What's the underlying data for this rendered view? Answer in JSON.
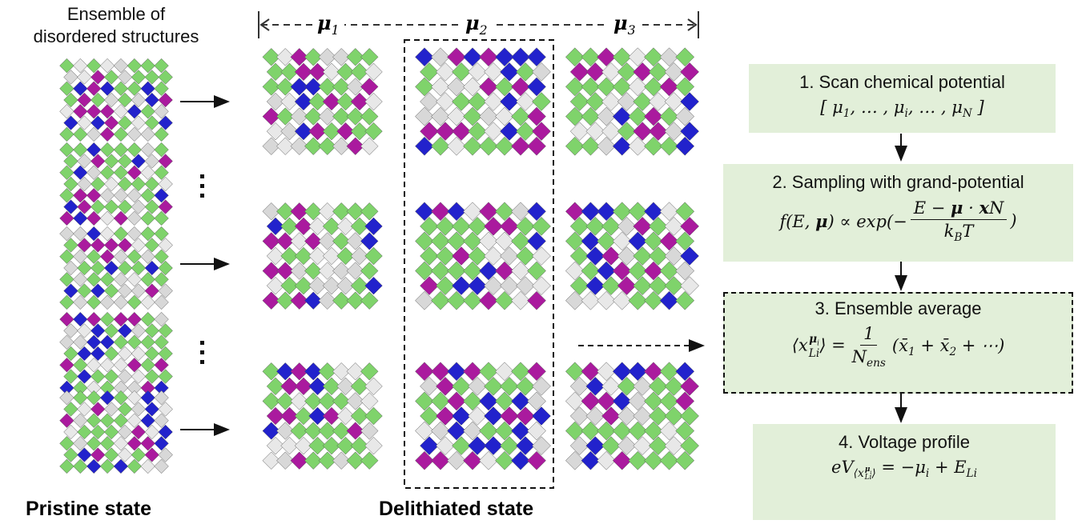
{
  "left_heading": [
    "Ensemble of",
    "disordered structures"
  ],
  "mu_labels": [
    {
      "t": "μ",
      "sub": "1"
    },
    {
      "t": "μ",
      "sub": "2"
    },
    {
      "t": "μ",
      "sub": "3"
    }
  ],
  "steps": [
    {
      "title": "1. Scan chemical potential",
      "formula": {
        "left": [
          {
            "t": "[ μ",
            "sub": "1"
          },
          {
            "t": ", … , μ",
            "sub": "i"
          },
          {
            "t": ", … , μ",
            "sub": "N"
          },
          {
            "t": " ]"
          }
        ]
      }
    },
    {
      "title": "2. Sampling with grand-potential",
      "formula": {
        "left": [
          {
            "t": "f(E, "
          },
          {
            "t": "μ"
          },
          {
            "t": ") ∝ exp(−"
          }
        ],
        "numerator": [
          {
            "t": "E − "
          },
          {
            "t": "μ"
          },
          {
            "t": " · "
          },
          {
            "t": "x"
          },
          {
            "t": "N"
          }
        ],
        "denominator": [
          {
            "t": "k",
            "sub": "B"
          },
          {
            "t": "T"
          }
        ],
        "right": [
          {
            "t": ")"
          }
        ]
      }
    },
    {
      "title": "3. Ensemble average",
      "formula": {
        "left": [
          {
            "t": "⟨x",
            "sup": [
              {
                "t": "μ",
                "sub": "i"
              }
            ],
            "sub": "Li"
          },
          {
            "t": "⟩ = "
          }
        ],
        "numerator": [
          {
            "t": "1"
          }
        ],
        "denominator": [
          {
            "t": "N",
            "sub": "ens"
          }
        ],
        "right": [
          {
            "t": "(x̄",
            "sub": "1"
          },
          {
            "t": " + x̄",
            "sub": "2"
          },
          {
            "t": " + ⋯)"
          }
        ]
      }
    },
    {
      "title": "4. Voltage profile",
      "formula": {
        "left": [
          {
            "t": "eV",
            "sub": [
              {
                "t": "⟨x",
                "sup": [
                  {
                    "t": "μ",
                    "sub": "i"
                  }
                ],
                "sub": "Li"
              },
              {
                "t": "⟩"
              }
            ]
          },
          {
            "t": " = −μ",
            "sub": "i"
          },
          {
            "t": " + E",
            "sub": "Li"
          }
        ]
      }
    }
  ],
  "pristine_label": "Pristine state",
  "delithiated_label": "Delithiated state"
}
